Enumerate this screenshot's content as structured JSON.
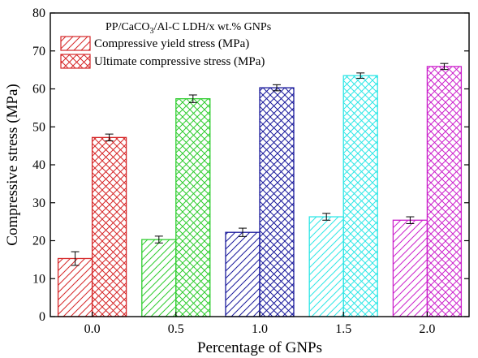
{
  "chart_data": {
    "type": "bar",
    "title": "",
    "xlabel": "Percentage of GNPs",
    "ylabel": "Compressive stress (MPa)",
    "ylim": [
      0,
      80
    ],
    "yticks": [
      0,
      10,
      20,
      30,
      40,
      50,
      60,
      70,
      80
    ],
    "categories": [
      "0.0",
      "0.5",
      "1.0",
      "1.5",
      "2.0"
    ],
    "legend": {
      "title_parts": [
        "PP/CaCO",
        "3",
        "/Al-C LDH/x wt.% GNPs"
      ],
      "placement": "top-left"
    },
    "series": [
      {
        "name": "Compressive yield stress (MPa)",
        "pattern": "diagonal-hatch",
        "values": [
          15.3,
          20.3,
          22.2,
          26.3,
          25.4
        ],
        "errors": [
          1.8,
          0.9,
          1.1,
          0.9,
          0.9
        ]
      },
      {
        "name": "Ultimate compressive stress (MPa)",
        "pattern": "cross-hatch",
        "values": [
          47.2,
          57.4,
          60.3,
          63.5,
          65.9
        ],
        "errors": [
          0.9,
          1.0,
          0.8,
          0.7,
          0.8
        ]
      }
    ],
    "category_colors": [
      "#d62728",
      "#2ecc2e",
      "#1a1a9c",
      "#2ee6e6",
      "#cc22cc"
    ],
    "legend_color": "#d62728",
    "grid": false
  }
}
